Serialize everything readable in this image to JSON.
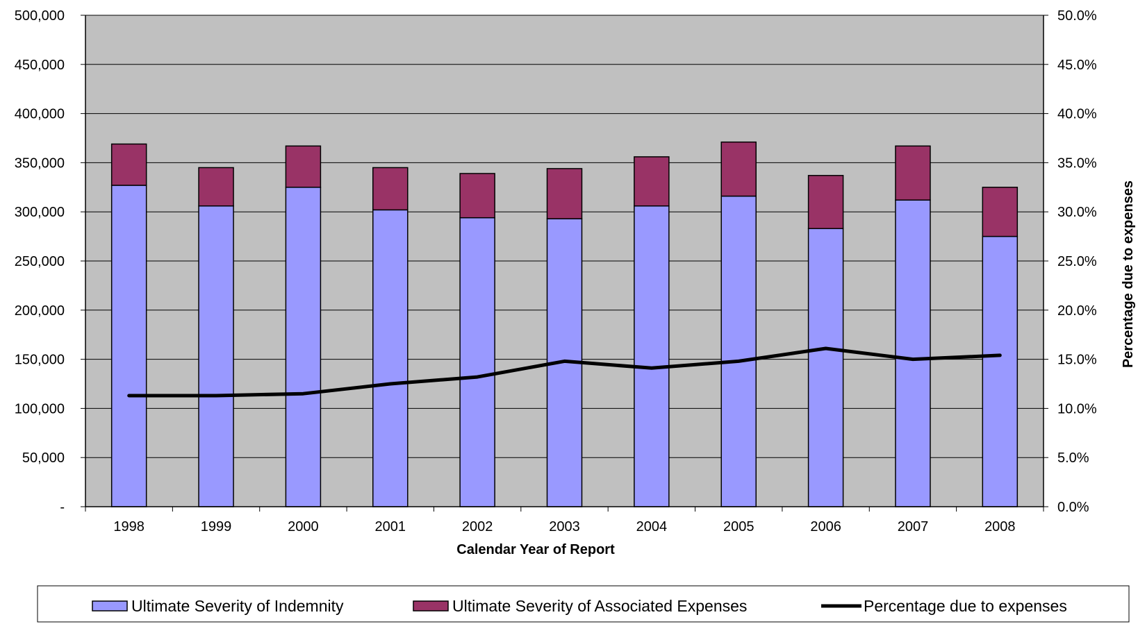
{
  "chart_data": {
    "type": "bar",
    "stacked": true,
    "categories": [
      "1998",
      "1999",
      "2000",
      "2001",
      "2002",
      "2003",
      "2004",
      "2005",
      "2006",
      "2007",
      "2008"
    ],
    "series": [
      {
        "name": "Ultimate Severity of Indemnity",
        "kind": "bar",
        "axis": "left",
        "color": "#9999ff",
        "values": [
          327000,
          306000,
          325000,
          302000,
          294000,
          293000,
          306000,
          316000,
          283000,
          312000,
          275000
        ]
      },
      {
        "name": "Ultimate Severity of Associated Expenses",
        "kind": "bar",
        "axis": "left",
        "color": "#993366",
        "values": [
          42000,
          39000,
          42000,
          43000,
          45000,
          51000,
          50000,
          55000,
          54000,
          55000,
          50000
        ]
      },
      {
        "name": "Percentage due to expenses",
        "kind": "line",
        "axis": "right",
        "color": "#000000",
        "values": [
          11.3,
          11.3,
          11.5,
          12.5,
          13.2,
          14.8,
          14.1,
          14.8,
          16.1,
          15.0,
          15.4
        ]
      }
    ],
    "xlabel": "Calendar Year of Report",
    "ylabel": "",
    "y2label": "Percentage due to expenses",
    "ylim": [
      0,
      500000
    ],
    "y2lim": [
      0,
      50
    ],
    "yticks": [
      "-",
      "50,000",
      "100,000",
      "150,000",
      "200,000",
      "250,000",
      "300,000",
      "350,000",
      "400,000",
      "450,000",
      "500,000"
    ],
    "y2ticks": [
      "0.0%",
      "5.0%",
      "10.0%",
      "15.0%",
      "20.0%",
      "25.0%",
      "30.0%",
      "35.0%",
      "40.0%",
      "45.0%",
      "50.0%"
    ],
    "grid": true,
    "plot_background": "#c0c0c0",
    "legend_position": "bottom"
  }
}
